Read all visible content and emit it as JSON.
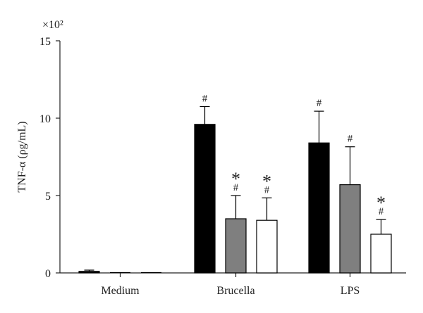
{
  "chart_data": {
    "type": "bar",
    "title": "",
    "xlabel": "",
    "ylabel": "TNF-α (ρg/mL)",
    "y_scale_note": "×10²",
    "ylim": [
      0,
      15
    ],
    "yticks": [
      "0",
      "5",
      "10",
      "15"
    ],
    "grid": false,
    "legend": "none",
    "categories": [
      "Medium",
      "Brucella",
      "LPS"
    ],
    "series": [
      {
        "color": "#000000",
        "values": [
          0.1,
          9.6,
          8.4
        ],
        "errors": [
          0.08,
          1.15,
          2.05
        ],
        "annotations": [
          "",
          "#",
          "#"
        ]
      },
      {
        "color": "#7f7f7f",
        "values": [
          0.0,
          3.5,
          5.7
        ],
        "errors": [
          0.0,
          1.5,
          2.45
        ],
        "annotations": [
          "",
          "*\n#",
          "#"
        ]
      },
      {
        "color": "#ffffff",
        "values": [
          0.0,
          3.4,
          2.5
        ],
        "errors": [
          0.0,
          1.45,
          0.95
        ],
        "annotations": [
          "",
          "*\n#",
          "*\n#"
        ]
      }
    ]
  }
}
